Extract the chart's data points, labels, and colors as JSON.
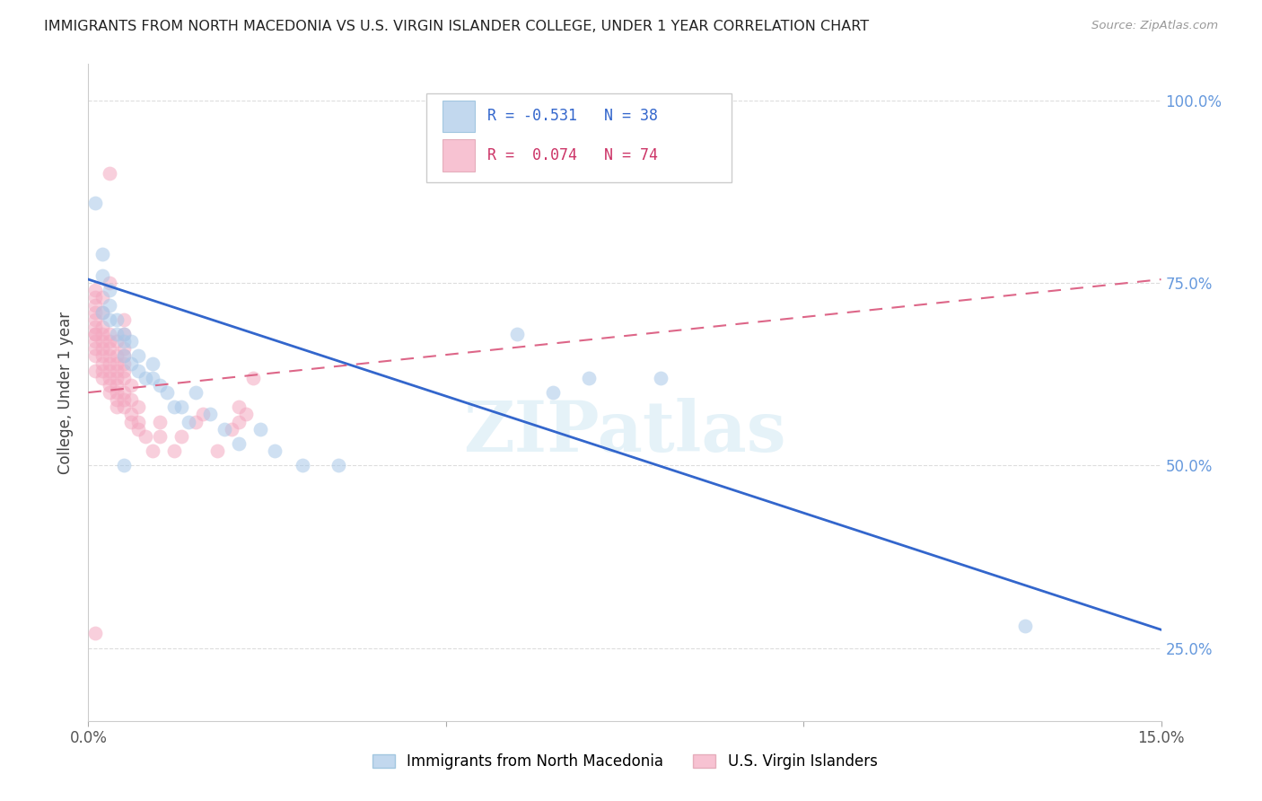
{
  "title": "IMMIGRANTS FROM NORTH MACEDONIA VS U.S. VIRGIN ISLANDER COLLEGE, UNDER 1 YEAR CORRELATION CHART",
  "source": "Source: ZipAtlas.com",
  "ylabel": "College, Under 1 year",
  "legend_label_blue": "Immigrants from North Macedonia",
  "legend_label_pink": "U.S. Virgin Islanders",
  "R_blue": -0.531,
  "N_blue": 38,
  "R_pink": 0.074,
  "N_pink": 74,
  "blue_color": "#a8c8e8",
  "pink_color": "#f4a8c0",
  "blue_line_color": "#3366cc",
  "pink_line_color": "#dd6688",
  "watermark": "ZIPatlas",
  "xlim": [
    0.0,
    0.15
  ],
  "ylim": [
    0.15,
    1.05
  ],
  "blue_line_x0": 0.0,
  "blue_line_y0": 0.755,
  "blue_line_x1": 0.15,
  "blue_line_y1": 0.275,
  "pink_line_x0": 0.0,
  "pink_line_y0": 0.6,
  "pink_line_x1": 0.15,
  "pink_line_y1": 0.755,
  "blue_dots_x": [
    0.001,
    0.002,
    0.002,
    0.002,
    0.003,
    0.003,
    0.003,
    0.004,
    0.004,
    0.005,
    0.005,
    0.005,
    0.006,
    0.006,
    0.007,
    0.007,
    0.008,
    0.009,
    0.009,
    0.01,
    0.011,
    0.012,
    0.013,
    0.014,
    0.015,
    0.017,
    0.019,
    0.021,
    0.024,
    0.026,
    0.03,
    0.035,
    0.06,
    0.065,
    0.07,
    0.08,
    0.131,
    0.005
  ],
  "blue_dots_y": [
    0.86,
    0.76,
    0.79,
    0.71,
    0.74,
    0.72,
    0.7,
    0.7,
    0.68,
    0.68,
    0.65,
    0.67,
    0.64,
    0.67,
    0.63,
    0.65,
    0.62,
    0.62,
    0.64,
    0.61,
    0.6,
    0.58,
    0.58,
    0.56,
    0.6,
    0.57,
    0.55,
    0.53,
    0.55,
    0.52,
    0.5,
    0.5,
    0.68,
    0.6,
    0.62,
    0.62,
    0.28,
    0.5
  ],
  "pink_dots_x": [
    0.001,
    0.001,
    0.001,
    0.001,
    0.001,
    0.001,
    0.001,
    0.001,
    0.001,
    0.001,
    0.001,
    0.001,
    0.002,
    0.002,
    0.002,
    0.002,
    0.002,
    0.002,
    0.002,
    0.002,
    0.002,
    0.002,
    0.003,
    0.003,
    0.003,
    0.003,
    0.003,
    0.003,
    0.003,
    0.003,
    0.003,
    0.003,
    0.004,
    0.004,
    0.004,
    0.004,
    0.004,
    0.004,
    0.004,
    0.004,
    0.004,
    0.005,
    0.005,
    0.005,
    0.005,
    0.005,
    0.005,
    0.005,
    0.005,
    0.005,
    0.005,
    0.006,
    0.006,
    0.006,
    0.006,
    0.007,
    0.007,
    0.007,
    0.008,
    0.009,
    0.01,
    0.01,
    0.012,
    0.013,
    0.015,
    0.016,
    0.018,
    0.02,
    0.021,
    0.021,
    0.022,
    0.023,
    0.003,
    0.001
  ],
  "pink_dots_y": [
    0.66,
    0.67,
    0.68,
    0.68,
    0.69,
    0.7,
    0.71,
    0.72,
    0.73,
    0.74,
    0.63,
    0.65,
    0.62,
    0.63,
    0.64,
    0.65,
    0.66,
    0.67,
    0.68,
    0.69,
    0.71,
    0.73,
    0.6,
    0.61,
    0.62,
    0.63,
    0.64,
    0.65,
    0.66,
    0.67,
    0.68,
    0.75,
    0.58,
    0.59,
    0.6,
    0.61,
    0.62,
    0.63,
    0.64,
    0.65,
    0.67,
    0.58,
    0.59,
    0.6,
    0.62,
    0.63,
    0.64,
    0.65,
    0.66,
    0.68,
    0.7,
    0.56,
    0.57,
    0.59,
    0.61,
    0.55,
    0.56,
    0.58,
    0.54,
    0.52,
    0.54,
    0.56,
    0.52,
    0.54,
    0.56,
    0.57,
    0.52,
    0.55,
    0.56,
    0.58,
    0.57,
    0.62,
    0.9,
    0.27
  ]
}
